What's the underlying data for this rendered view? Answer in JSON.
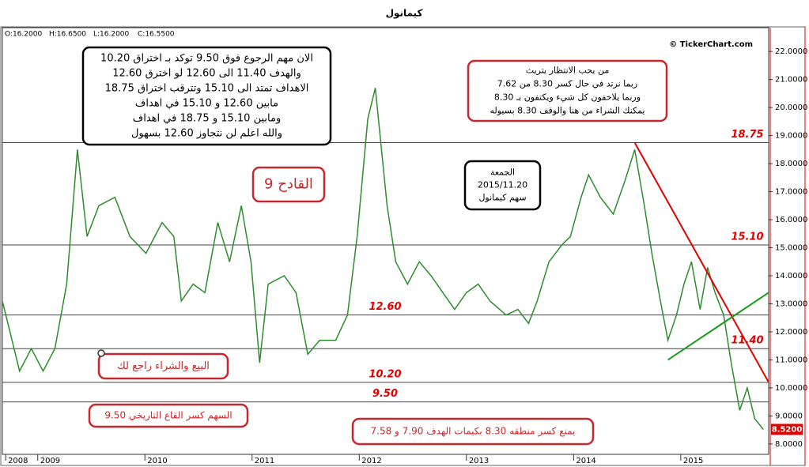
{
  "chart_data": {
    "type": "line",
    "title": "كيمانول",
    "ohlc": [
      "O:16.2000",
      "H:16.6500",
      "L:16.2000",
      "C:16.5500"
    ],
    "source": "© TickerChart.com",
    "x": [
      2008.67,
      2008.76,
      2008.83,
      2008.94,
      2009.05,
      2009.16,
      2009.27,
      2009.37,
      2009.46,
      2009.57,
      2009.72,
      2009.86,
      2010.01,
      2010.16,
      2010.27,
      2010.34,
      2010.45,
      2010.56,
      2010.68,
      2010.79,
      2010.9,
      2010.99,
      2011.07,
      2011.15,
      2011.3,
      2011.41,
      2011.52,
      2011.63,
      2011.78,
      2011.89,
      2011.98,
      2012.08,
      2012.15,
      2012.26,
      2012.34,
      2012.45,
      2012.56,
      2012.67,
      2012.78,
      2012.89,
      2013.0,
      2013.11,
      2013.22,
      2013.37,
      2013.48,
      2013.58,
      2013.66,
      2013.77,
      2013.89,
      2013.97,
      2014.07,
      2014.14,
      2014.25,
      2014.37,
      2014.48,
      2014.57,
      2014.66,
      2014.73,
      2014.81,
      2014.88,
      2014.96,
      2015.03,
      2015.1,
      2015.18,
      2015.25,
      2015.32,
      2015.4,
      2015.47,
      2015.55,
      2015.62,
      2015.69,
      2015.77
    ],
    "series": [
      {
        "color": "#2e8b2e",
        "values": [
          13.1,
          11.7,
          10.6,
          11.4,
          10.6,
          11.4,
          13.7,
          18.5,
          15.4,
          16.5,
          16.8,
          15.4,
          14.8,
          15.9,
          15.4,
          13.1,
          13.7,
          13.4,
          15.9,
          14.5,
          16.5,
          14.5,
          10.9,
          13.7,
          14.0,
          13.4,
          11.2,
          11.7,
          11.7,
          12.6,
          15.4,
          19.6,
          20.7,
          16.5,
          14.5,
          13.7,
          14.5,
          14.0,
          13.4,
          12.8,
          13.4,
          13.7,
          13.1,
          12.6,
          12.8,
          12.3,
          13.1,
          14.5,
          15.1,
          15.4,
          16.8,
          17.6,
          16.8,
          16.2,
          17.4,
          18.5,
          16.5,
          14.8,
          13.1,
          11.7,
          12.6,
          13.7,
          14.5,
          12.8,
          14.3,
          13.4,
          12.6,
          10.9,
          9.2,
          10.0,
          8.9,
          8.52
        ]
      }
    ],
    "last_price": {
      "value": 8.52,
      "label": "8.5200"
    },
    "xlim": [
      2008.67,
      2015.82
    ],
    "xticks": [
      {
        "value": 2008.7,
        "label": "2008"
      },
      2009,
      2010,
      2011,
      2012,
      2013,
      2014,
      2015
    ],
    "ylim": [
      7.63,
      22.85
    ],
    "yticks": [
      {
        "value": 8,
        "label": "8.0000"
      },
      {
        "value": 9,
        "label": "9.0000"
      },
      {
        "value": 10,
        "label": "10.0000"
      },
      {
        "value": 11,
        "label": "11.0000"
      },
      {
        "value": 12,
        "label": "12.0000"
      },
      {
        "value": 13,
        "label": "13.0000"
      },
      {
        "value": 14,
        "label": "14.0000"
      },
      {
        "value": 15,
        "label": "15.0000"
      },
      {
        "value": 16,
        "label": "16.0000"
      },
      {
        "value": 17,
        "label": "17.0000"
      },
      {
        "value": 18,
        "label": "18.0000"
      },
      {
        "value": 19,
        "label": "19.0000"
      },
      {
        "value": 20,
        "label": "20.0000"
      },
      {
        "value": 21,
        "label": "21.0000"
      },
      {
        "value": 22,
        "label": "22.0000"
      }
    ],
    "levels": [
      18.75,
      {
        "value": 15.1,
        "label": "15.10"
      },
      {
        "value": 12.6,
        "label": "12.60"
      },
      {
        "value": 11.4,
        "label": "11.40"
      },
      {
        "value": 10.2,
        "label": "10.20"
      },
      {
        "value": 9.5,
        "label": "9.50"
      }
    ],
    "trendlines": [
      {
        "color": "#e00000",
        "x": [
          2014.57,
          2015.82
        ],
        "values": [
          18.75,
          10.2
        ]
      },
      {
        "color": "#1a9a1a",
        "x": [
          2014.88,
          2015.82
        ],
        "values": [
          11.0,
          13.4
        ]
      }
    ],
    "annotations": [
      {
        "lines": [
          "الان مهم الرجوع فوق 9.50 توكد بـ اختراق 10.20",
          "والهدف 11.40 الى 12.60 لو اخترق 12.60",
          "الاهداف تمتد الى 15.10 وتترقب اختراق 18.75",
          "مابين 12.60 و 15.10 في اهداف",
          "ومابين 15.10 و 18.75 في اهداف",
          "والله اعلم لن نتجاوز 12.60 بسهول"
        ]
      },
      {
        "lines": [
          "من يحب الانتظار يتريث",
          "ربما نرتد في حال كسر 8.30 من 7.62",
          "وربما يلاخفون كل شيء ويكتفون بـ 8.30",
          "يمكنك الشراء من هنا والوقف 8.30 بسيوله"
        ]
      },
      {
        "lines": [
          "القادح 9"
        ]
      },
      {
        "lines": [
          "الجمعة",
          "2015/11.20",
          "سهم كيمانول"
        ]
      },
      {
        "lines": [
          "البيع والشراء راجع لك"
        ]
      },
      {
        "lines": [
          "السهم كسر القاع التاريخي 9.50"
        ]
      },
      {
        "lines": [
          "يمنع كسر منطقه 8.30 بكيمات الهدف 7.90 و 7.58"
        ]
      }
    ]
  }
}
